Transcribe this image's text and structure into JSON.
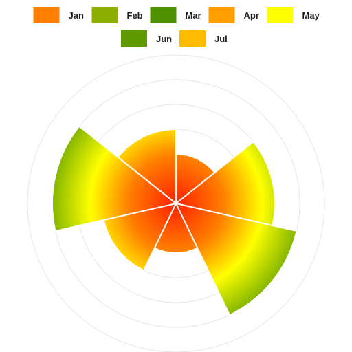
{
  "chart_data": {
    "type": "polar-area",
    "categories": [
      "Jan",
      "Feb",
      "Mar",
      "Apr",
      "May",
      "Jun",
      "Jul"
    ],
    "values": [
      2,
      4,
      5,
      2,
      3,
      5,
      3
    ],
    "rlim": [
      0,
      6
    ],
    "grid": true,
    "legend_position": "top",
    "legend_colors": [
      "#ff7f00",
      "#8db000",
      "#4f9000",
      "#ffa000",
      "#ffff00",
      "#5e9a00",
      "#ffbb00"
    ],
    "gradient_stops": [
      "#ff2000",
      "#ff7f00",
      "#ffff00",
      "#3d8c00"
    ]
  }
}
